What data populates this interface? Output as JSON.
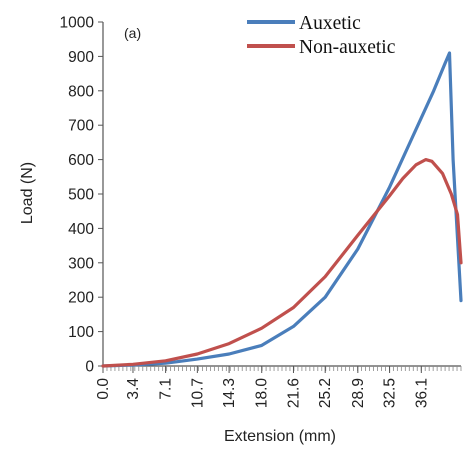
{
  "chart_data": {
    "type": "line",
    "panel_label": "(a)",
    "xlabel": "Extension (mm)",
    "ylabel": "Load (N)",
    "xlim": [
      0,
      40.6
    ],
    "ylim": [
      0,
      1000
    ],
    "x_ticks": [
      0.0,
      3.4,
      7.1,
      10.7,
      14.3,
      18.0,
      21.6,
      25.2,
      28.9,
      32.5,
      36.1
    ],
    "x_tick_labels": [
      "0.0",
      "3.4",
      "7.1",
      "10.7",
      "14.3",
      "18.0",
      "21.6",
      "25.2",
      "28.9",
      "32.5",
      "36.1"
    ],
    "y_ticks": [
      0,
      100,
      200,
      300,
      400,
      500,
      600,
      700,
      800,
      900,
      1000
    ],
    "y_tick_labels": [
      "0",
      "100",
      "200",
      "300",
      "400",
      "500",
      "600",
      "700",
      "800",
      "900",
      "1000"
    ],
    "grid": false,
    "legend_position": "top-right",
    "series": [
      {
        "name": "Auxetic",
        "color": "#4a7ebb",
        "x": [
          0,
          3.4,
          7.1,
          10.7,
          14.3,
          18.0,
          21.6,
          25.2,
          28.9,
          32.5,
          35.0,
          37.5,
          38.8,
          39.3,
          39.7,
          40.6
        ],
        "y": [
          0,
          3,
          8,
          20,
          35,
          60,
          115,
          200,
          340,
          520,
          660,
          800,
          880,
          910,
          600,
          190
        ]
      },
      {
        "name": "Non-auxetic",
        "color": "#c0504d",
        "x": [
          0,
          3.4,
          7.1,
          10.7,
          14.3,
          18.0,
          21.6,
          25.2,
          28.9,
          32.5,
          34.0,
          35.5,
          36.6,
          37.3,
          38.5,
          39.5,
          40.2,
          40.6
        ],
        "y": [
          0,
          5,
          15,
          35,
          65,
          110,
          170,
          260,
          380,
          495,
          545,
          585,
          600,
          595,
          560,
          500,
          440,
          300
        ]
      }
    ]
  }
}
